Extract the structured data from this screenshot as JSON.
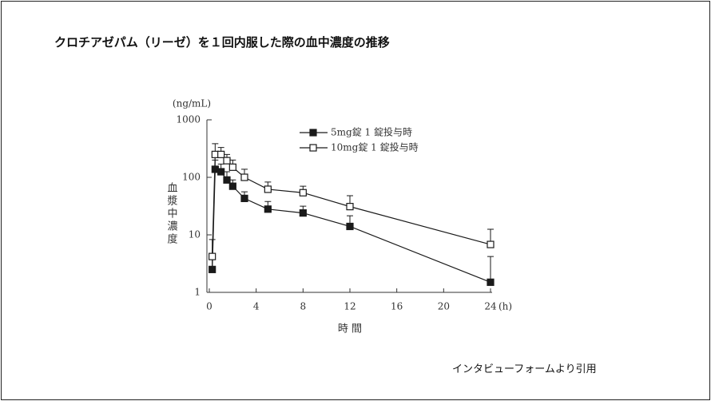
{
  "header": {
    "title": "クロチアゼパム（リーゼ）を１回内服した際の血中濃度の推移"
  },
  "chart_data": {
    "type": "line",
    "y_unit": "(ng/mL)",
    "y_label": "血漿中濃度",
    "x_label": "時 間",
    "x_unit": "(h)",
    "ylog": true,
    "ylim": [
      1,
      1000
    ],
    "yticks": [
      1,
      10,
      100,
      1000
    ],
    "xlim": [
      0,
      24
    ],
    "xticks": [
      0,
      4,
      8,
      12,
      16,
      20,
      24
    ],
    "x": [
      0.25,
      0.5,
      1,
      1.5,
      2,
      3,
      5,
      8,
      12,
      24
    ],
    "series": [
      {
        "name": "5mg錠 1 錠投与時",
        "color": "#1a1a1a",
        "fill": "#1a1a1a",
        "values": [
          2.5,
          138,
          125,
          90,
          70,
          43,
          28,
          24,
          14,
          1.5
        ],
        "errors": [
          5.8,
          62,
          45,
          35,
          20,
          13,
          10,
          7.5,
          7.5,
          2.7
        ]
      },
      {
        "name": "10mg錠 1 錠投与時",
        "color": "#1a1a1a",
        "fill": "#ffffff",
        "values": [
          4.2,
          250,
          250,
          195,
          150,
          100,
          62,
          54,
          31,
          6.8
        ],
        "errors": [
          0,
          135,
          80,
          55,
          50,
          38,
          21,
          16,
          17,
          5.7
        ]
      }
    ]
  },
  "footer": {
    "source": "インタビューフォームより引用"
  }
}
